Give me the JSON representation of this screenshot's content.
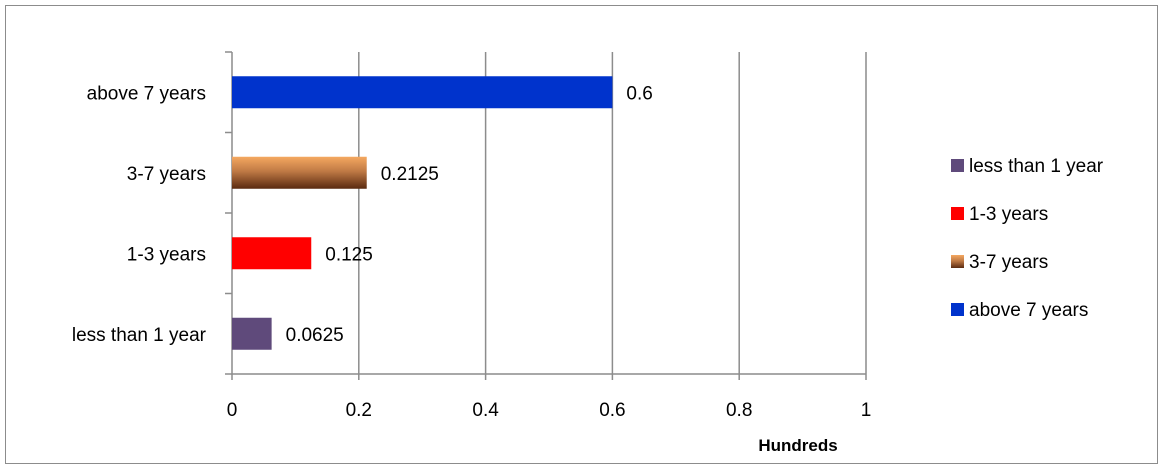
{
  "chart_data": {
    "type": "bar",
    "orientation": "horizontal",
    "categories": [
      "less than 1 year",
      "1-3 years",
      "3-7 years",
      "above 7 years"
    ],
    "values": [
      0.0625,
      0.125,
      0.2125,
      0.6
    ],
    "data_labels": [
      "0.0625",
      "0.125",
      "0.2125",
      "0.6"
    ],
    "colors": [
      "#5f4a7b",
      "#ff0000",
      "#c0763c",
      "#0033cc"
    ],
    "xlim": [
      0,
      1
    ],
    "x_ticks": [
      "0",
      "0.2",
      "0.4",
      "0.6",
      "0.8",
      "1"
    ],
    "x_unit_label": "Hundreds",
    "grid": "vertical",
    "legend": {
      "position": "right",
      "entries": [
        "less than 1 year",
        "1-3 years",
        "3-7 years",
        "above 7 years"
      ]
    }
  }
}
